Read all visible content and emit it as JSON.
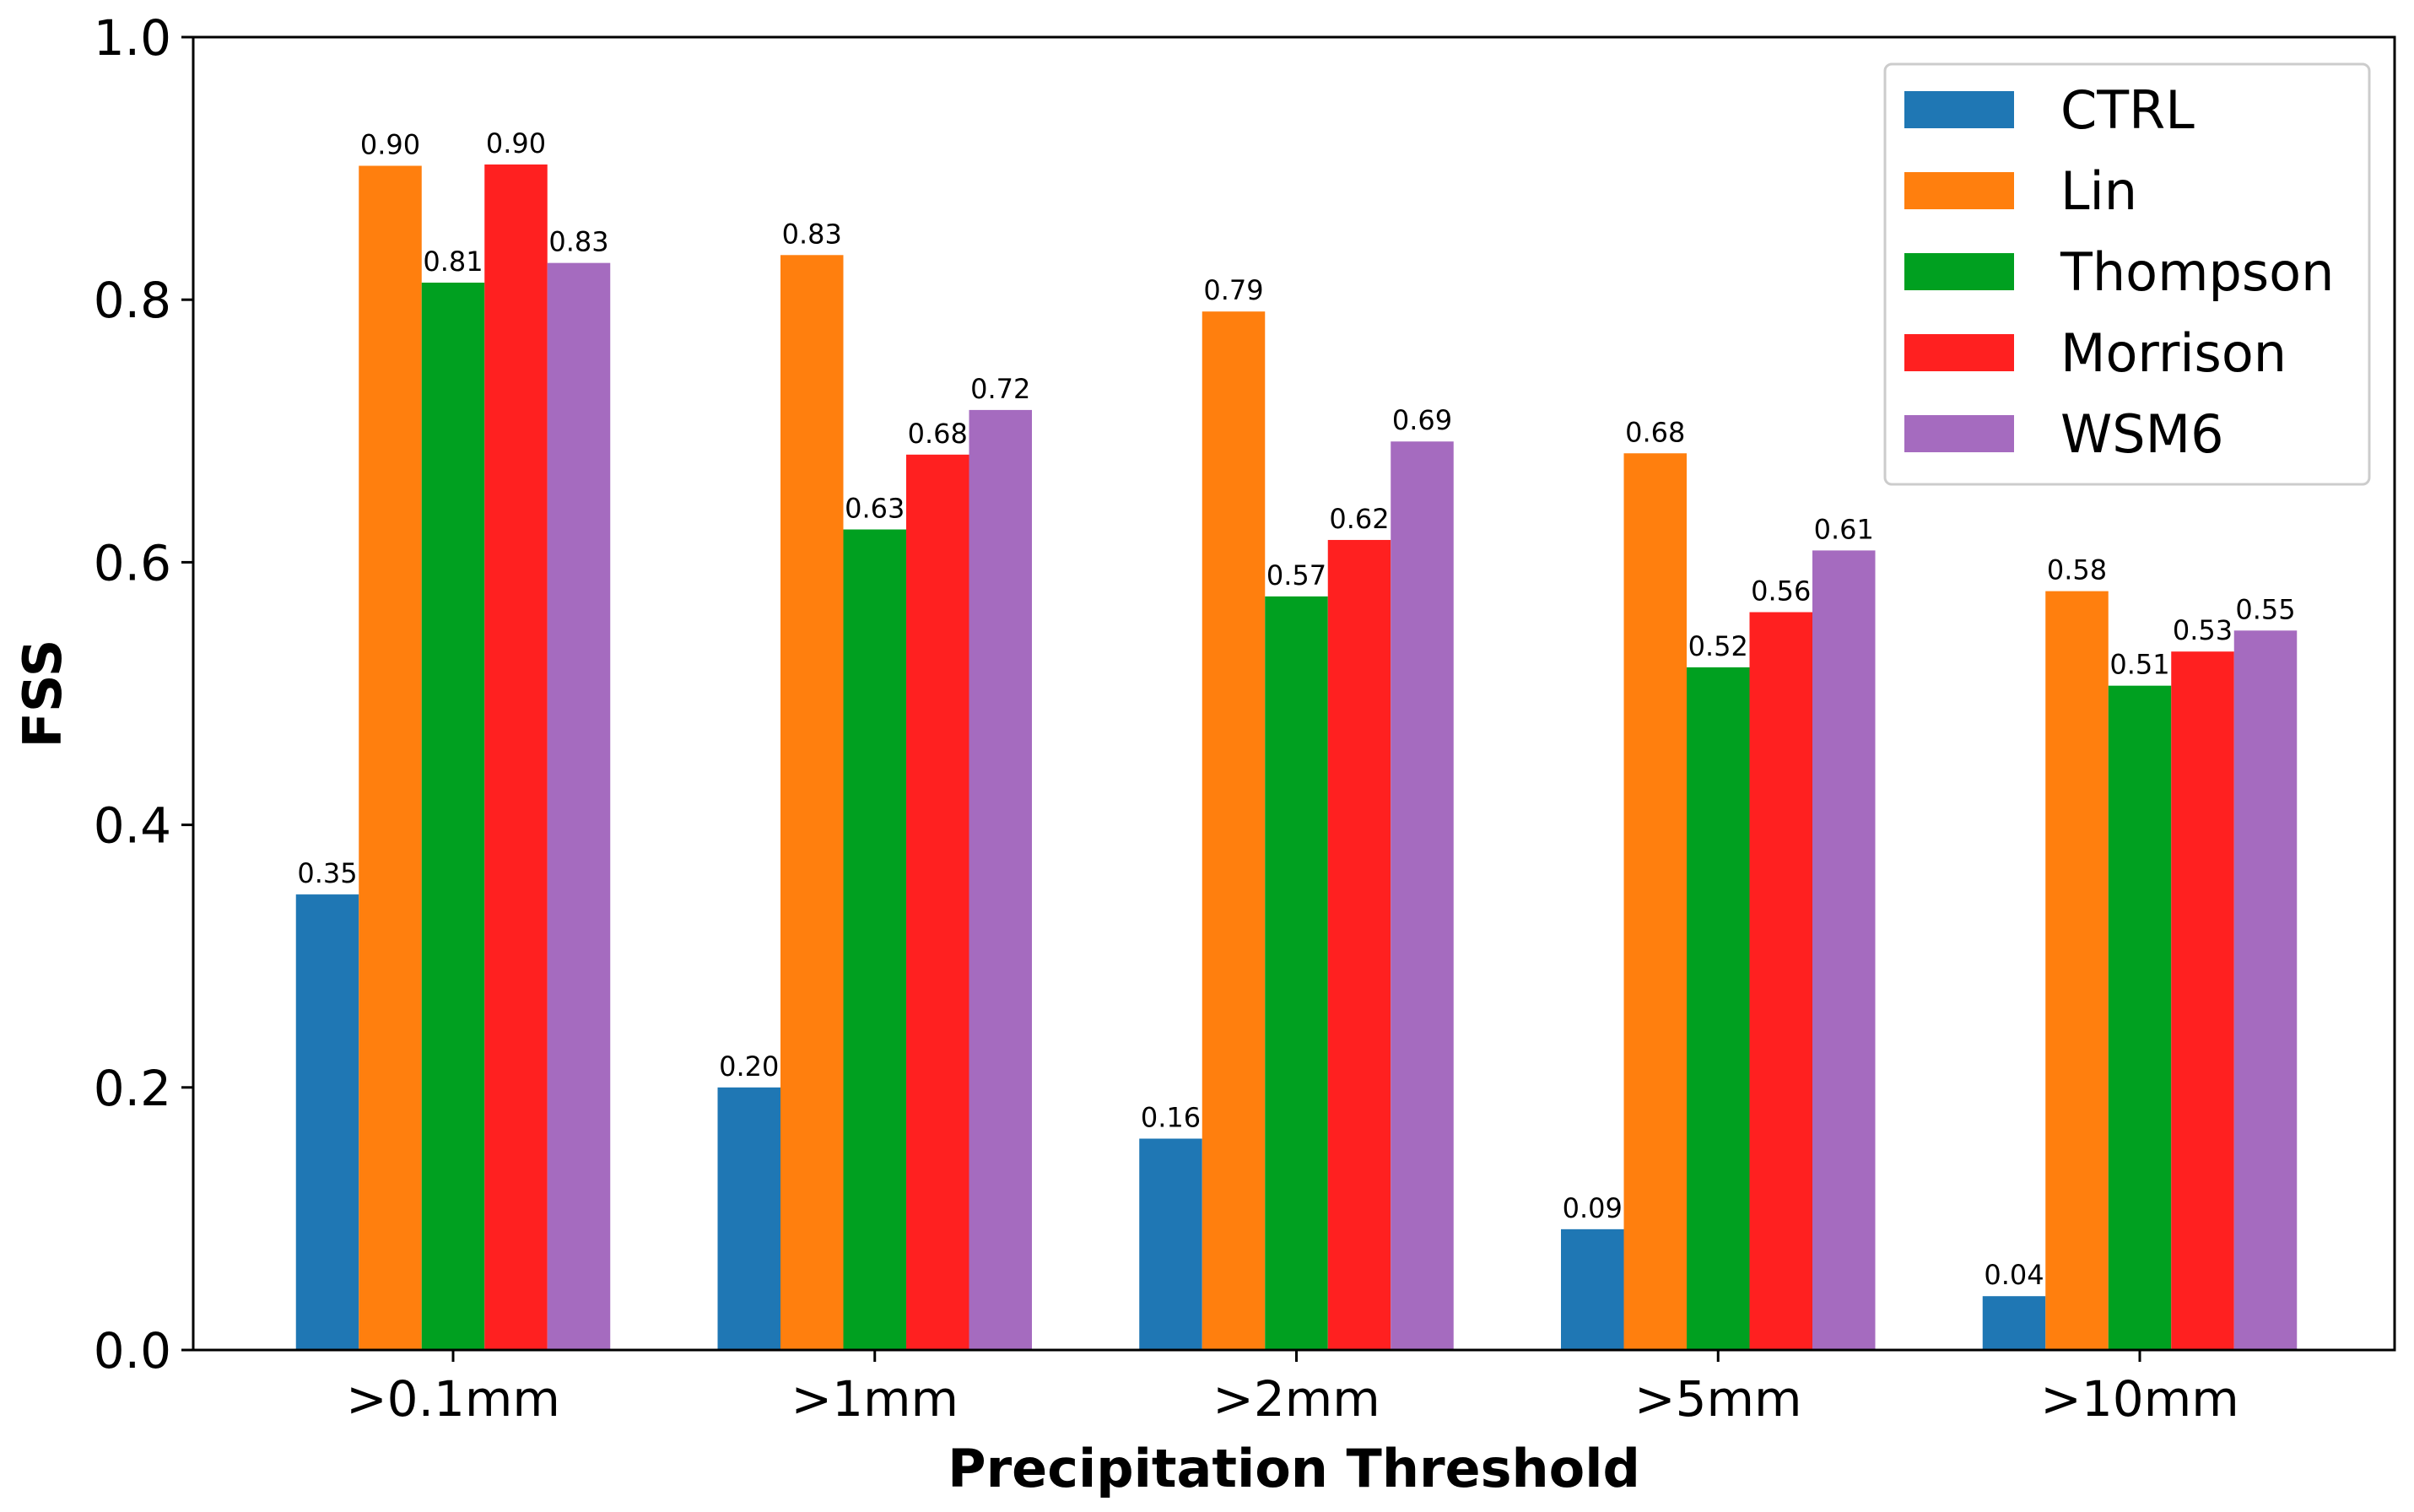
{
  "chart_data": {
    "type": "bar",
    "title": "",
    "xlabel": "Precipitation Threshold",
    "ylabel": "FSS",
    "ylim": [
      0,
      1.0
    ],
    "yticks": [
      "0.0",
      "0.2",
      "0.4",
      "0.6",
      "0.8",
      "1.0"
    ],
    "grid": false,
    "legend_position": "top-right",
    "categories": [
      ">0.1mm",
      ">1mm",
      ">2mm",
      ">5mm",
      ">10mm"
    ],
    "series": [
      {
        "name": "CTRL",
        "color": "#1f77b4",
        "values": [
          0.347,
          0.2,
          0.161,
          0.092,
          0.041
        ],
        "labels": [
          "0.35",
          "0.20",
          "0.16",
          "0.09",
          "0.04"
        ]
      },
      {
        "name": "Lin",
        "color": "#ff7f0e",
        "values": [
          0.902,
          0.834,
          0.791,
          0.683,
          0.578
        ],
        "labels": [
          "0.90",
          "0.83",
          "0.79",
          "0.68",
          "0.58"
        ]
      },
      {
        "name": "Thompson",
        "color": "#00a020",
        "values": [
          0.813,
          0.625,
          0.574,
          0.52,
          0.506
        ],
        "labels": [
          "0.81",
          "0.63",
          "0.57",
          "0.52",
          "0.51"
        ]
      },
      {
        "name": "Morrison",
        "color": "#ff2020",
        "values": [
          0.903,
          0.682,
          0.617,
          0.562,
          0.532
        ],
        "labels": [
          "0.90",
          "0.68",
          "0.62",
          "0.56",
          "0.53"
        ]
      },
      {
        "name": "WSM6",
        "color": "#a56bbf",
        "values": [
          0.828,
          0.716,
          0.692,
          0.609,
          0.548
        ],
        "labels": [
          "0.83",
          "0.72",
          "0.69",
          "0.61",
          "0.55"
        ]
      }
    ]
  }
}
